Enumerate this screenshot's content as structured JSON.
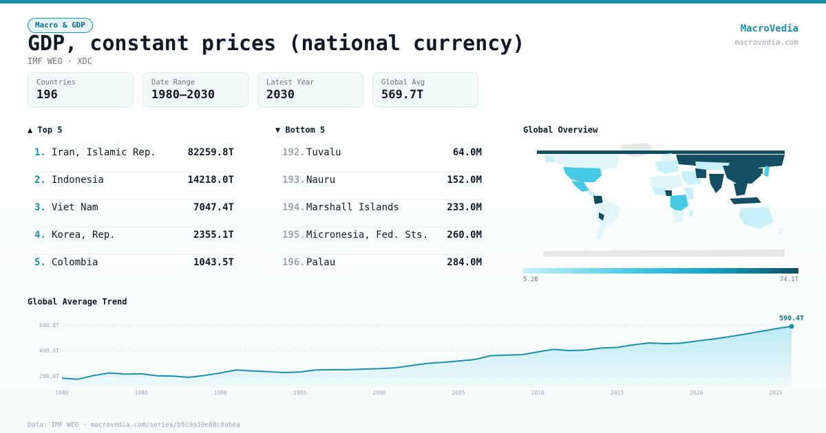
{
  "header": {
    "category": "Macro & GDP",
    "title": "GDP, constant prices (national currency)",
    "subtitle": "IMF WEO · XDC",
    "brand": "MacroVedia",
    "brand_url": "macrovedia.com"
  },
  "stats": [
    {
      "label": "Countries",
      "value": "196"
    },
    {
      "label": "Date Range",
      "value": "1980–2030"
    },
    {
      "label": "Latest Year",
      "value": "2030"
    },
    {
      "label": "Global Avg",
      "value": "569.7T"
    }
  ],
  "top5": {
    "heading": "▲ Top 5",
    "items": [
      {
        "rank": "1.",
        "name": "Iran, Islamic Rep.",
        "value": "82259.8T"
      },
      {
        "rank": "2.",
        "name": "Indonesia",
        "value": "14218.0T"
      },
      {
        "rank": "3.",
        "name": "Viet Nam",
        "value": "7047.4T"
      },
      {
        "rank": "4.",
        "name": "Korea, Rep.",
        "value": "2355.1T"
      },
      {
        "rank": "5.",
        "name": "Colombia",
        "value": "1043.5T"
      }
    ]
  },
  "bottom5": {
    "heading": "▼ Bottom 5",
    "items": [
      {
        "rank": "192.",
        "name": "Tuvalu",
        "value": "64.0M"
      },
      {
        "rank": "193.",
        "name": "Nauru",
        "value": "152.0M"
      },
      {
        "rank": "194.",
        "name": "Marshall Islands",
        "value": "233.0M"
      },
      {
        "rank": "195.",
        "name": "Micronesia, Fed. Sts.",
        "value": "260.0M"
      },
      {
        "rank": "196.",
        "name": "Palau",
        "value": "284.0M"
      }
    ]
  },
  "map": {
    "heading": "Global Overview",
    "legend_min": "5.2B",
    "legend_max": "74.1T",
    "colors": {
      "light": "#c9f0fa",
      "mid": "#46c9e5",
      "dark": "#134e63",
      "nodata": "#e5e7eb"
    }
  },
  "trend": {
    "heading": "Global Average Trend",
    "last_label": "590.4T"
  },
  "footer": {
    "source": "Data: IMF WEO · macrovedia.com/series/b5c9a10e68c8abea"
  },
  "chart_data": {
    "type": "area",
    "title": "Global Average Trend",
    "xlabel": "",
    "ylabel": "",
    "x": [
      1980,
      1981,
      1982,
      1983,
      1984,
      1985,
      1986,
      1987,
      1988,
      1989,
      1990,
      1991,
      1992,
      1993,
      1994,
      1995,
      1996,
      1997,
      1998,
      1999,
      2000,
      2001,
      2002,
      2003,
      2004,
      2005,
      2006,
      2007,
      2008,
      2009,
      2010,
      2011,
      2012,
      2013,
      2014,
      2015,
      2016,
      2017,
      2018,
      2019,
      2020,
      2021,
      2022,
      2023,
      2024,
      2025,
      2026
    ],
    "series": [
      {
        "values": [
          183,
          175,
          205,
          225,
          215,
          218,
          202,
          200,
          190,
          205,
          225,
          248,
          240,
          235,
          228,
          232,
          248,
          250,
          250,
          255,
          258,
          265,
          282,
          300,
          308,
          318,
          330,
          360,
          365,
          368,
          390,
          410,
          400,
          405,
          420,
          425,
          445,
          460,
          455,
          458,
          475,
          490,
          508,
          528,
          550,
          572,
          590.4
        ]
      }
    ],
    "xticks": [
      "1980",
      "1985",
      "1990",
      "1995",
      "2000",
      "2005",
      "2010",
      "2015",
      "2020",
      "2025"
    ],
    "yticks": [
      "200.0T",
      "400.0T",
      "600.0T"
    ],
    "ylim": [
      120,
      660
    ],
    "grid": true,
    "accent": "#1a8fa8"
  }
}
